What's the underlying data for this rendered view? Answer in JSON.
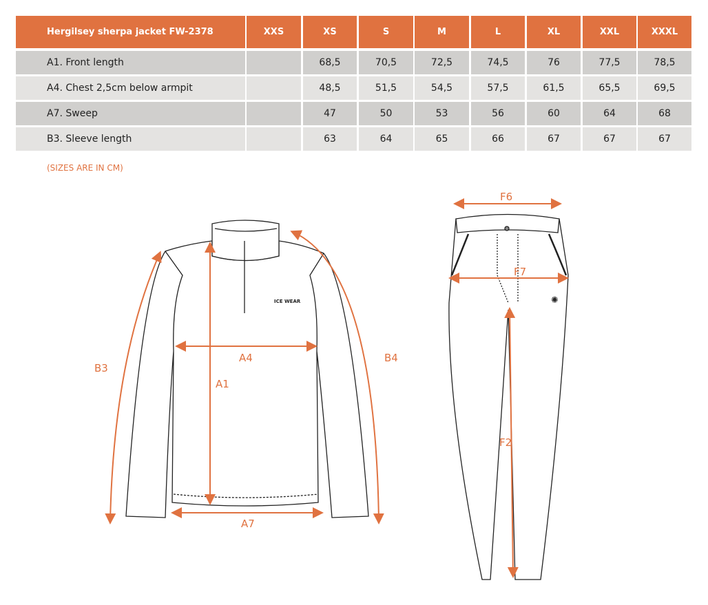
{
  "table": {
    "title": "Hergilsey sherpa jacket FW-2378",
    "sizes": [
      "XXS",
      "XS",
      "S",
      "M",
      "L",
      "XL",
      "XXL",
      "XXXL"
    ],
    "rows": [
      {
        "label": "A1. Front length",
        "values": [
          "",
          "68,5",
          "70,5",
          "72,5",
          "74,5",
          "76",
          "77,5",
          "78,5"
        ]
      },
      {
        "label": "A4. Chest 2,5cm below armpit",
        "values": [
          "",
          "48,5",
          "51,5",
          "54,5",
          "57,5",
          "61,5",
          "65,5",
          "69,5"
        ]
      },
      {
        "label": "A7. Sweep",
        "values": [
          "",
          "47",
          "50",
          "53",
          "56",
          "60",
          "64",
          "68"
        ]
      },
      {
        "label": "B3. Sleeve length",
        "values": [
          "",
          "63",
          "64",
          "65",
          "66",
          "67",
          "67",
          "67"
        ]
      }
    ]
  },
  "note": "(SIZES ARE IN CM)",
  "jacket_labels": {
    "a1": "A1",
    "a4": "A4",
    "a7": "A7",
    "b3": "B3",
    "b4": "B4",
    "logo": "ICE WEAR"
  },
  "pants_labels": {
    "f2": "F2",
    "f6": "F6",
    "f7": "F7"
  },
  "colors": {
    "accent": "#e07240",
    "row_dark": "#d0cfcd",
    "row_light": "#e4e3e1"
  }
}
